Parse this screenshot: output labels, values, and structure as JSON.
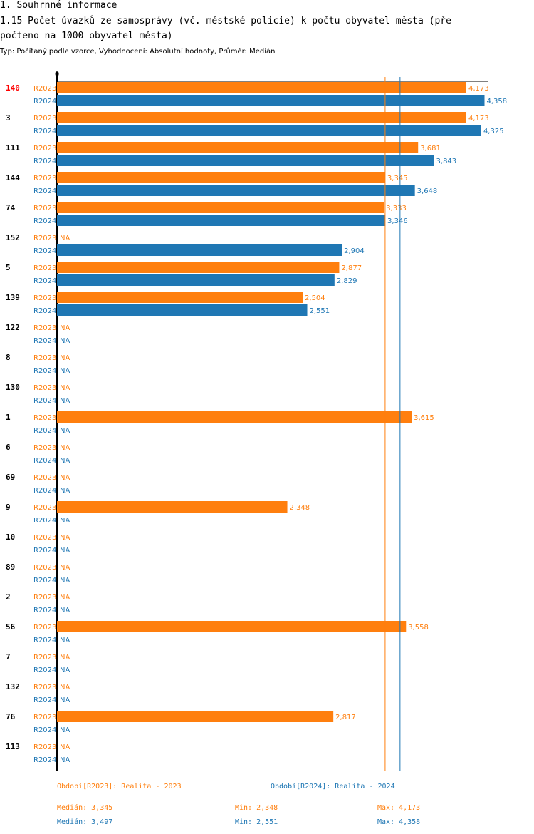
{
  "heading": {
    "section": "1. Souhrnné informace",
    "title_line1": "1.15 Počet úvazků ze samosprávy (vč. městské policie) k počtu obyvatel města (pře",
    "title_line2": "počteno na 1000 obyvatel města)",
    "subtitle": "Typ: Počítaný podle vzorce, Vyhodnocení: Absolutní hodnoty, Průměr: Medián"
  },
  "colors": {
    "r2023": "#ff7f0e",
    "r2024": "#1f77b4",
    "highlight": "#ff0000",
    "text": "#000000"
  },
  "chart_data": {
    "type": "bar",
    "orientation": "horizontal",
    "axis_zero_label": "0",
    "xlim": [
      0,
      4.6
    ],
    "highlighted_category": "140",
    "na_label": "NA",
    "series": [
      {
        "name": "R2023",
        "legend": "Období[R2023]: Realita - 2023",
        "median": 3.345,
        "median_label": "Medián: 3,345",
        "min_label": "Min: 2,348",
        "max_label": "Max: 4,173"
      },
      {
        "name": "R2024",
        "legend": "Období[R2024]: Realita - 2024",
        "median": 3.497,
        "median_label": "Medián: 3,497",
        "min_label": "Min: 2,551",
        "max_label": "Max: 4,358"
      }
    ],
    "categories": [
      {
        "id": "140",
        "R2023": 4.173,
        "R2024": 4.358
      },
      {
        "id": "3",
        "R2023": 4.173,
        "R2024": 4.325
      },
      {
        "id": "111",
        "R2023": 3.681,
        "R2024": 3.843
      },
      {
        "id": "144",
        "R2023": 3.345,
        "R2024": 3.648
      },
      {
        "id": "74",
        "R2023": 3.333,
        "R2024": 3.346
      },
      {
        "id": "152",
        "R2023": null,
        "R2024": 2.904
      },
      {
        "id": "5",
        "R2023": 2.877,
        "R2024": 2.829
      },
      {
        "id": "139",
        "R2023": 2.504,
        "R2024": 2.551
      },
      {
        "id": "122",
        "R2023": null,
        "R2024": null
      },
      {
        "id": "8",
        "R2023": null,
        "R2024": null
      },
      {
        "id": "130",
        "R2023": null,
        "R2024": null
      },
      {
        "id": "1",
        "R2023": 3.615,
        "R2024": null
      },
      {
        "id": "6",
        "R2023": null,
        "R2024": null
      },
      {
        "id": "69",
        "R2023": null,
        "R2024": null
      },
      {
        "id": "9",
        "R2023": 2.348,
        "R2024": null
      },
      {
        "id": "10",
        "R2023": null,
        "R2024": null
      },
      {
        "id": "89",
        "R2023": null,
        "R2024": null
      },
      {
        "id": "2",
        "R2023": null,
        "R2024": null
      },
      {
        "id": "56",
        "R2023": 3.558,
        "R2024": null
      },
      {
        "id": "7",
        "R2023": null,
        "R2024": null
      },
      {
        "id": "132",
        "R2023": null,
        "R2024": null
      },
      {
        "id": "76",
        "R2023": 2.817,
        "R2024": null
      },
      {
        "id": "113",
        "R2023": null,
        "R2024": null
      }
    ]
  }
}
